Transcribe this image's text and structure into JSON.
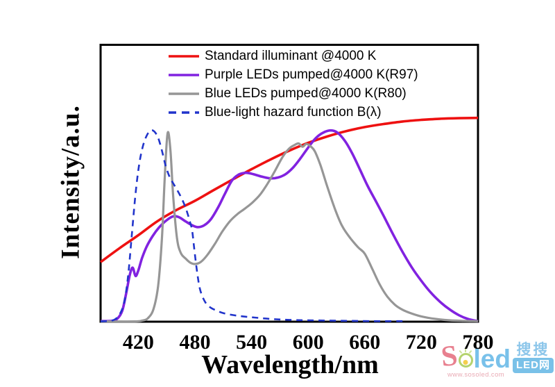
{
  "figure": {
    "xlabel": "Wavelength/nm",
    "ylabel": "Intensity/a.u."
  },
  "watermark": {
    "brand_s": "S",
    "brand_rest": "led",
    "url": "www.sosoled.com",
    "cjk": "搜搜",
    "badge": "LED网"
  },
  "chart_data": {
    "type": "line",
    "title": "",
    "xlabel": "Wavelength/nm",
    "ylabel": "Intensity/a.u.",
    "xlim": [
      380,
      780
    ],
    "ylim": [
      0,
      1
    ],
    "x_ticks": [
      420,
      480,
      540,
      600,
      660,
      720,
      780
    ],
    "y_ticks": [],
    "grid": false,
    "legend_position": "top-left-inside",
    "y_units": "arbitrary units, normalized 0-1 of plot height",
    "frame_color": "#000000",
    "series": [
      {
        "name": "Standard illuminant @4000 K",
        "color": "#ee1111",
        "style": "solid",
        "width": 3.6,
        "points": [
          [
            380,
            0.215
          ],
          [
            400,
            0.265
          ],
          [
            420,
            0.312
          ],
          [
            440,
            0.362
          ],
          [
            460,
            0.402
          ],
          [
            480,
            0.436
          ],
          [
            500,
            0.475
          ],
          [
            520,
            0.513
          ],
          [
            540,
            0.55
          ],
          [
            560,
            0.585
          ],
          [
            580,
            0.617
          ],
          [
            600,
            0.645
          ],
          [
            620,
            0.668
          ],
          [
            640,
            0.687
          ],
          [
            660,
            0.702
          ],
          [
            680,
            0.713
          ],
          [
            700,
            0.722
          ],
          [
            720,
            0.728
          ],
          [
            740,
            0.732
          ],
          [
            760,
            0.734
          ],
          [
            780,
            0.735
          ]
        ]
      },
      {
        "name": "Purple LEDs pumped@4000 K(R97)",
        "color": "#8122e0",
        "style": "solid",
        "width": 3.6,
        "points": [
          [
            380,
            0.002
          ],
          [
            392,
            0.003
          ],
          [
            398,
            0.012
          ],
          [
            403,
            0.04
          ],
          [
            407,
            0.1
          ],
          [
            411,
            0.17
          ],
          [
            414,
            0.195
          ],
          [
            417,
            0.165
          ],
          [
            420,
            0.185
          ],
          [
            424,
            0.23
          ],
          [
            429,
            0.272
          ],
          [
            435,
            0.308
          ],
          [
            442,
            0.34
          ],
          [
            450,
            0.366
          ],
          [
            457,
            0.38
          ],
          [
            463,
            0.377
          ],
          [
            470,
            0.362
          ],
          [
            477,
            0.348
          ],
          [
            483,
            0.341
          ],
          [
            490,
            0.348
          ],
          [
            497,
            0.37
          ],
          [
            505,
            0.415
          ],
          [
            512,
            0.463
          ],
          [
            519,
            0.508
          ],
          [
            526,
            0.53
          ],
          [
            534,
            0.537
          ],
          [
            542,
            0.532
          ],
          [
            551,
            0.523
          ],
          [
            560,
            0.517
          ],
          [
            568,
            0.52
          ],
          [
            576,
            0.532
          ],
          [
            584,
            0.556
          ],
          [
            592,
            0.59
          ],
          [
            600,
            0.628
          ],
          [
            608,
            0.662
          ],
          [
            616,
            0.682
          ],
          [
            624,
            0.69
          ],
          [
            631,
            0.682
          ],
          [
            639,
            0.652
          ],
          [
            647,
            0.605
          ],
          [
            655,
            0.548
          ],
          [
            663,
            0.49
          ],
          [
            672,
            0.433
          ],
          [
            681,
            0.375
          ],
          [
            690,
            0.315
          ],
          [
            700,
            0.252
          ],
          [
            710,
            0.195
          ],
          [
            720,
            0.147
          ],
          [
            730,
            0.105
          ],
          [
            740,
            0.071
          ],
          [
            750,
            0.044
          ],
          [
            760,
            0.023
          ],
          [
            770,
            0.009
          ],
          [
            780,
            0.002
          ]
        ]
      },
      {
        "name": "Blue LEDs pumped@4000 K(R80)",
        "color": "#969696",
        "style": "solid",
        "width": 3.2,
        "points": [
          [
            380,
            0.001
          ],
          [
            416,
            0.001
          ],
          [
            424,
            0.004
          ],
          [
            430,
            0.012
          ],
          [
            436,
            0.045
          ],
          [
            441,
            0.13
          ],
          [
            445,
            0.3
          ],
          [
            448,
            0.52
          ],
          [
            451,
            0.68
          ],
          [
            454,
            0.62
          ],
          [
            457,
            0.45
          ],
          [
            461,
            0.3
          ],
          [
            465,
            0.248
          ],
          [
            470,
            0.228
          ],
          [
            475,
            0.213
          ],
          [
            480,
            0.208
          ],
          [
            486,
            0.215
          ],
          [
            493,
            0.24
          ],
          [
            501,
            0.28
          ],
          [
            509,
            0.325
          ],
          [
            517,
            0.362
          ],
          [
            525,
            0.388
          ],
          [
            533,
            0.408
          ],
          [
            541,
            0.43
          ],
          [
            549,
            0.458
          ],
          [
            557,
            0.498
          ],
          [
            565,
            0.545
          ],
          [
            573,
            0.595
          ],
          [
            580,
            0.625
          ],
          [
            586,
            0.638
          ],
          [
            590,
            0.643
          ],
          [
            594,
            0.631
          ],
          [
            598,
            0.641
          ],
          [
            602,
            0.634
          ],
          [
            607,
            0.615
          ],
          [
            613,
            0.565
          ],
          [
            620,
            0.49
          ],
          [
            628,
            0.41
          ],
          [
            636,
            0.345
          ],
          [
            645,
            0.3
          ],
          [
            653,
            0.268
          ],
          [
            660,
            0.245
          ],
          [
            668,
            0.19
          ],
          [
            676,
            0.133
          ],
          [
            684,
            0.09
          ],
          [
            692,
            0.061
          ],
          [
            700,
            0.043
          ],
          [
            710,
            0.029
          ],
          [
            720,
            0.019
          ],
          [
            735,
            0.01
          ],
          [
            750,
            0.005
          ],
          [
            765,
            0.003
          ],
          [
            780,
            0.002
          ]
        ]
      },
      {
        "name": "Blue-light hazard function B(λ)",
        "color": "#2134cb",
        "style": "dashed",
        "width": 2.6,
        "points": [
          [
            380,
            0.001
          ],
          [
            390,
            0.003
          ],
          [
            395,
            0.008
          ],
          [
            400,
            0.025
          ],
          [
            405,
            0.07
          ],
          [
            409,
            0.16
          ],
          [
            413,
            0.31
          ],
          [
            417,
            0.46
          ],
          [
            421,
            0.57
          ],
          [
            425,
            0.635
          ],
          [
            429,
            0.672
          ],
          [
            433,
            0.69
          ],
          [
            437,
            0.686
          ],
          [
            441,
            0.663
          ],
          [
            445,
            0.617
          ],
          [
            449,
            0.562
          ],
          [
            453,
            0.523
          ],
          [
            457,
            0.499
          ],
          [
            461,
            0.476
          ],
          [
            465,
            0.451
          ],
          [
            469,
            0.421
          ],
          [
            472,
            0.392
          ],
          [
            475,
            0.357
          ],
          [
            477,
            0.33
          ],
          [
            479,
            0.272
          ],
          [
            481,
            0.212
          ],
          [
            483,
            0.162
          ],
          [
            485,
            0.122
          ],
          [
            488,
            0.09
          ],
          [
            492,
            0.065
          ],
          [
            497,
            0.05
          ],
          [
            503,
            0.04
          ],
          [
            510,
            0.031
          ],
          [
            520,
            0.024
          ],
          [
            531,
            0.019
          ],
          [
            543,
            0.015
          ],
          [
            556,
            0.011
          ],
          [
            570,
            0.008
          ],
          [
            585,
            0.006
          ],
          [
            600,
            0.005
          ],
          [
            620,
            0.004
          ],
          [
            645,
            0.003
          ],
          [
            670,
            0.002
          ],
          [
            700,
            0.002
          ]
        ]
      }
    ]
  }
}
